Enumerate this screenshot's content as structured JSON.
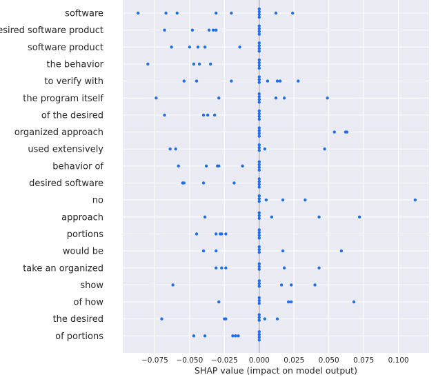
{
  "chart_data": {
    "type": "scatter",
    "title": "",
    "xlabel": "SHAP value (impact on model output)",
    "ylabel": "",
    "xlim": [
      -0.098,
      0.122
    ],
    "xticks": [
      -0.075,
      -0.05,
      -0.025,
      0.0,
      0.025,
      0.05,
      0.075,
      0.1
    ],
    "xtick_labels": [
      "−0.075",
      "−0.050",
      "−0.025",
      "0.000",
      "0.025",
      "0.050",
      "0.075",
      "0.100"
    ],
    "grid": true,
    "point_color": "#1f6fe6",
    "background_color": "#eaeaf2",
    "zero_line_color": "#999999",
    "features": [
      {
        "name": "software",
        "values": [
          -0.087,
          -0.067,
          -0.059,
          -0.031,
          -0.02,
          0.0,
          0.0,
          0.0,
          0.0,
          0.012,
          0.024
        ]
      },
      {
        "name": "desired software product",
        "values": [
          -0.068,
          -0.048,
          -0.036,
          -0.033,
          -0.031,
          0.0,
          0.0,
          0.0,
          0.0
        ]
      },
      {
        "name": "software product",
        "values": [
          -0.063,
          -0.05,
          -0.044,
          -0.039,
          -0.014,
          0.0,
          0.0,
          0.0,
          0.0
        ]
      },
      {
        "name": "the behavior",
        "values": [
          -0.08,
          -0.047,
          -0.043,
          -0.035,
          0.0,
          0.0,
          0.0,
          0.0
        ]
      },
      {
        "name": "to verify with",
        "values": [
          -0.054,
          -0.045,
          -0.02,
          0.0,
          0.0,
          0.0,
          0.006,
          0.013,
          0.015,
          0.028
        ]
      },
      {
        "name": "the program itself",
        "values": [
          -0.074,
          -0.029,
          0.0,
          0.0,
          0.0,
          0.0,
          0.012,
          0.018,
          0.049
        ]
      },
      {
        "name": "of the desired",
        "values": [
          -0.068,
          -0.04,
          -0.037,
          -0.032,
          0.0,
          0.0,
          0.0,
          0.0
        ]
      },
      {
        "name": "organized approach",
        "values": [
          0.0,
          0.0,
          0.0,
          0.0,
          0.054,
          0.062,
          0.063
        ]
      },
      {
        "name": "used extensively",
        "values": [
          -0.064,
          -0.06,
          0.0,
          0.0,
          0.0,
          0.004,
          0.047
        ]
      },
      {
        "name": "behavior of",
        "values": [
          -0.058,
          -0.038,
          -0.03,
          -0.029,
          -0.012,
          0.0,
          0.0,
          0.0,
          0.0
        ]
      },
      {
        "name": "desired software",
        "values": [
          -0.055,
          -0.054,
          -0.04,
          -0.018,
          0.0,
          0.0,
          0.0,
          0.0
        ]
      },
      {
        "name": "no",
        "values": [
          0.0,
          0.0,
          0.0,
          0.005,
          0.017,
          0.033,
          0.112
        ]
      },
      {
        "name": "approach",
        "values": [
          -0.039,
          0.0,
          0.0,
          0.0,
          0.009,
          0.043,
          0.072
        ]
      },
      {
        "name": "portions",
        "values": [
          -0.045,
          -0.031,
          -0.028,
          -0.027,
          -0.024,
          0.0,
          0.0,
          0.0,
          0.0
        ]
      },
      {
        "name": "would be",
        "values": [
          -0.04,
          -0.031,
          0.0,
          0.0,
          0.0,
          0.017,
          0.059
        ]
      },
      {
        "name": "take an organized",
        "values": [
          -0.031,
          -0.027,
          -0.024,
          0.0,
          0.0,
          0.0,
          0.018,
          0.043
        ]
      },
      {
        "name": "show",
        "values": [
          -0.062,
          0.0,
          0.0,
          0.0,
          0.016,
          0.023,
          0.04
        ]
      },
      {
        "name": "of how",
        "values": [
          -0.029,
          0.0,
          0.0,
          0.0,
          0.021,
          0.023,
          0.068
        ]
      },
      {
        "name": "the desired",
        "values": [
          -0.07,
          -0.025,
          -0.024,
          0.0,
          0.0,
          0.0,
          0.004,
          0.013
        ]
      },
      {
        "name": "of portions",
        "values": [
          -0.047,
          -0.039,
          -0.019,
          -0.017,
          -0.015,
          0.0,
          0.0,
          0.0,
          0.0
        ]
      }
    ]
  }
}
